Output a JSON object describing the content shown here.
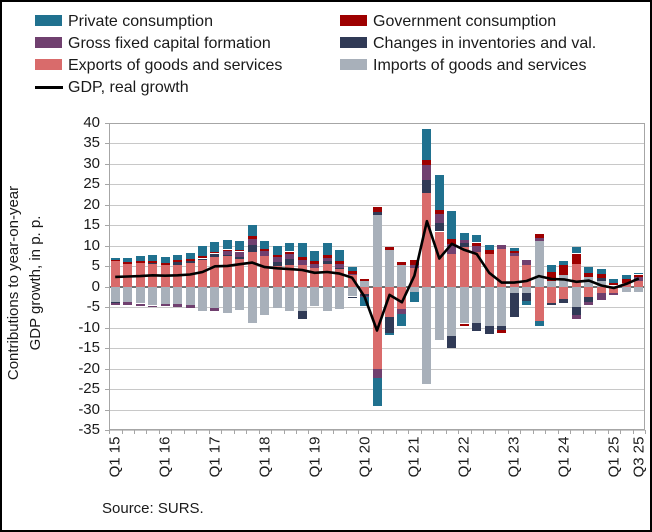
{
  "source": "Source: SURS.",
  "y_axis": {
    "title_line1": "Contributions to year-on-year",
    "title_line2": "GDP growth, in p. p.",
    "max": 40,
    "min": -35,
    "step": 5,
    "ticks": [
      "40",
      "35",
      "30",
      "25",
      "20",
      "15",
      "10",
      "5",
      "0",
      "-5",
      "-10",
      "-15",
      "-20",
      "-25",
      "-30",
      "-35"
    ]
  },
  "x_axis": {
    "visible_labels": [
      {
        "index": 0,
        "label": "Q1 15"
      },
      {
        "index": 4,
        "label": "Q1 16"
      },
      {
        "index": 8,
        "label": "Q1 17"
      },
      {
        "index": 12,
        "label": "Q1 18"
      },
      {
        "index": 16,
        "label": "Q1 19"
      },
      {
        "index": 20,
        "label": "Q1 20"
      },
      {
        "index": 24,
        "label": "Q1 21"
      },
      {
        "index": 28,
        "label": "Q1 22"
      },
      {
        "index": 32,
        "label": "Q1 23"
      },
      {
        "index": 36,
        "label": "Q1 24"
      },
      {
        "index": 40,
        "label": "Q1 25"
      },
      {
        "index": 42,
        "label": "Q3 25"
      }
    ]
  },
  "colors": {
    "private": "#20718F",
    "government": "#9E0000",
    "gfcf": "#70406F",
    "inventories": "#303A56",
    "exports": "#D96B6B",
    "imports": "#A8B0BA",
    "gdp_line": "#000000",
    "gridline": "#C8C8C8",
    "plot_border": "#A6A6A6",
    "zero_line": "#707070",
    "text": "#1A1A1A"
  },
  "legend": [
    {
      "key": "private",
      "label": "Private consumption",
      "type": "box"
    },
    {
      "key": "government",
      "label": "Government consumption",
      "type": "box"
    },
    {
      "key": "gfcf",
      "label": "Gross fixed capital formation",
      "type": "box"
    },
    {
      "key": "inventories",
      "label": "Changes in inventories and val.",
      "type": "box"
    },
    {
      "key": "exports",
      "label": "Exports of goods and services",
      "type": "box"
    },
    {
      "key": "imports",
      "label": "Imports of goods and services",
      "type": "box"
    },
    {
      "key": "gdp",
      "label": "GDP, real growth",
      "type": "line"
    }
  ],
  "chart_data": {
    "type": "bar",
    "subtype": "stacked-bar-with-line",
    "title": "",
    "xlabel": "",
    "ylabel": "Contributions to year-on-year GDP growth, in p. p.",
    "ylim": [
      -35,
      40
    ],
    "grid": true,
    "legend_position": "top",
    "stack_order_bottom_to_top": [
      "imports",
      "exports",
      "inventories",
      "gfcf",
      "government",
      "private"
    ],
    "categories": [
      "Q1 15",
      "Q2 15",
      "Q3 15",
      "Q4 15",
      "Q1 16",
      "Q2 16",
      "Q3 16",
      "Q4 16",
      "Q1 17",
      "Q2 17",
      "Q3 17",
      "Q4 17",
      "Q1 18",
      "Q2 18",
      "Q3 18",
      "Q4 18",
      "Q1 19",
      "Q2 19",
      "Q3 19",
      "Q4 19",
      "Q1 20",
      "Q2 20",
      "Q3 20",
      "Q4 20",
      "Q1 21",
      "Q2 21",
      "Q3 21",
      "Q4 21",
      "Q1 22",
      "Q2 22",
      "Q3 22",
      "Q4 22",
      "Q1 23",
      "Q2 23",
      "Q3 23",
      "Q4 23",
      "Q1 24",
      "Q2 24",
      "Q3 24",
      "Q4 24",
      "Q1 25",
      "Q2 25",
      "Q3 25"
    ],
    "series": [
      {
        "key": "private",
        "name": "Private consumption",
        "values": [
          0.4,
          1.0,
          1.2,
          1.5,
          1.6,
          1.2,
          1.4,
          2.5,
          2.6,
          2.4,
          2.2,
          2.6,
          1.9,
          2.1,
          2.0,
          3.4,
          2.5,
          2.9,
          2.7,
          1.0,
          -2.2,
          -7.0,
          -0.5,
          -3.0,
          -2.5,
          7.6,
          8.5,
          6.9,
          1.6,
          1.9,
          1.4,
          0.0,
          0.8,
          -1.0,
          -1.2,
          1.9,
          1.0,
          1.5,
          1.4,
          1.2,
          1.0,
          1.0,
          0.3
        ]
      },
      {
        "key": "government",
        "name": "Government consumption",
        "values": [
          0.4,
          0.4,
          0.4,
          0.5,
          0.5,
          0.5,
          0.5,
          0.5,
          0.3,
          0.4,
          0.4,
          0.6,
          0.6,
          0.6,
          0.7,
          0.7,
          0.6,
          0.7,
          0.7,
          0.7,
          0.7,
          1.1,
          0.6,
          0.6,
          1.2,
          1.2,
          1.0,
          1.2,
          -0.7,
          0.8,
          0.8,
          -0.8,
          0.4,
          0.0,
          0.9,
          2.0,
          2.3,
          2.6,
          1.1,
          1.0,
          0.7,
          1.0,
          0.5
        ]
      },
      {
        "key": "gfcf",
        "name": "Gross fixed capital formation",
        "values": [
          -0.6,
          -0.7,
          -0.6,
          -0.3,
          -0.4,
          -0.7,
          -0.6,
          0.0,
          -0.6,
          0.9,
          1.4,
          1.6,
          1.3,
          1.1,
          1.2,
          1.3,
          1.1,
          0.8,
          0.9,
          0.3,
          -0.4,
          -2.1,
          0.0,
          -1.1,
          0.8,
          3.6,
          2.1,
          2.3,
          0.9,
          1.5,
          0.0,
          1.0,
          0.8,
          1.2,
          0.8,
          0.0,
          0.0,
          -1.1,
          -0.8,
          -1.8,
          -0.5,
          0.0,
          1.0
        ]
      },
      {
        "key": "inventories",
        "name": "Changes in inventories and val.",
        "values": [
          -0.2,
          0.0,
          0.0,
          0.2,
          0.0,
          0.7,
          0.5,
          0.4,
          0.9,
          0.3,
          0.4,
          1.8,
          0.0,
          1.1,
          1.3,
          -1.8,
          0.0,
          0.6,
          0.3,
          -0.4,
          -0.4,
          0.8,
          -3.8,
          0.0,
          0.0,
          3.1,
          2.1,
          -2.9,
          0.8,
          -2.1,
          -1.8,
          -1.0,
          -6.0,
          -2.0,
          0.0,
          -0.6,
          -0.8,
          -1.8,
          -1.1,
          0.7,
          0.0,
          0.0,
          0.0
        ]
      },
      {
        "key": "exports",
        "name": "Exports of goods and services",
        "values": [
          6.2,
          5.6,
          5.8,
          5.6,
          5.2,
          5.4,
          5.8,
          6.5,
          7.2,
          7.5,
          6.8,
          8.4,
          7.4,
          5.0,
          5.4,
          5.3,
          4.5,
          5.6,
          4.3,
          2.8,
          -1.8,
          -20.1,
          -7.5,
          -5.5,
          4.5,
          23.0,
          13.5,
          8.1,
          9.8,
          8.5,
          8.1,
          9.3,
          7.5,
          5.4,
          -8.4,
          -3.9,
          -3.1,
          5.5,
          -2.6,
          -1.5,
          -1.5,
          0.9,
          1.5
        ]
      },
      {
        "key": "imports",
        "name": "Imports of goods and services",
        "values": [
          -3.7,
          -3.7,
          -4.1,
          -4.6,
          -4.3,
          -4.3,
          -4.5,
          -6.0,
          -5.3,
          -6.4,
          -5.7,
          -9.0,
          -7.0,
          -5.3,
          -6.0,
          -6.0,
          -4.8,
          -6.0,
          -5.5,
          -2.4,
          1.3,
          17.5,
          9.0,
          5.4,
          -1.3,
          -23.7,
          -13.0,
          -12.0,
          -9.0,
          -8.8,
          -9.7,
          -9.5,
          -1.5,
          -1.5,
          11.2,
          1.5,
          2.9,
          -5.0,
          2.3,
          1.5,
          0.3,
          -1.4,
          -1.2
        ]
      }
    ],
    "line_series": {
      "key": "gdp",
      "name": "GDP, real growth",
      "values": [
        2.4,
        2.5,
        2.6,
        2.8,
        2.7,
        2.8,
        3.0,
        3.6,
        5.0,
        5.1,
        5.5,
        5.9,
        4.8,
        4.5,
        4.3,
        4.1,
        3.4,
        3.6,
        3.2,
        2.2,
        -2.4,
        -10.7,
        -2.0,
        -3.8,
        2.7,
        16.0,
        6.9,
        10.5,
        9.0,
        8.0,
        3.4,
        1.0,
        1.0,
        1.4,
        2.6,
        1.9,
        1.8,
        1.2,
        1.5,
        0.3,
        -0.3,
        0.7,
        2.0
      ]
    }
  }
}
